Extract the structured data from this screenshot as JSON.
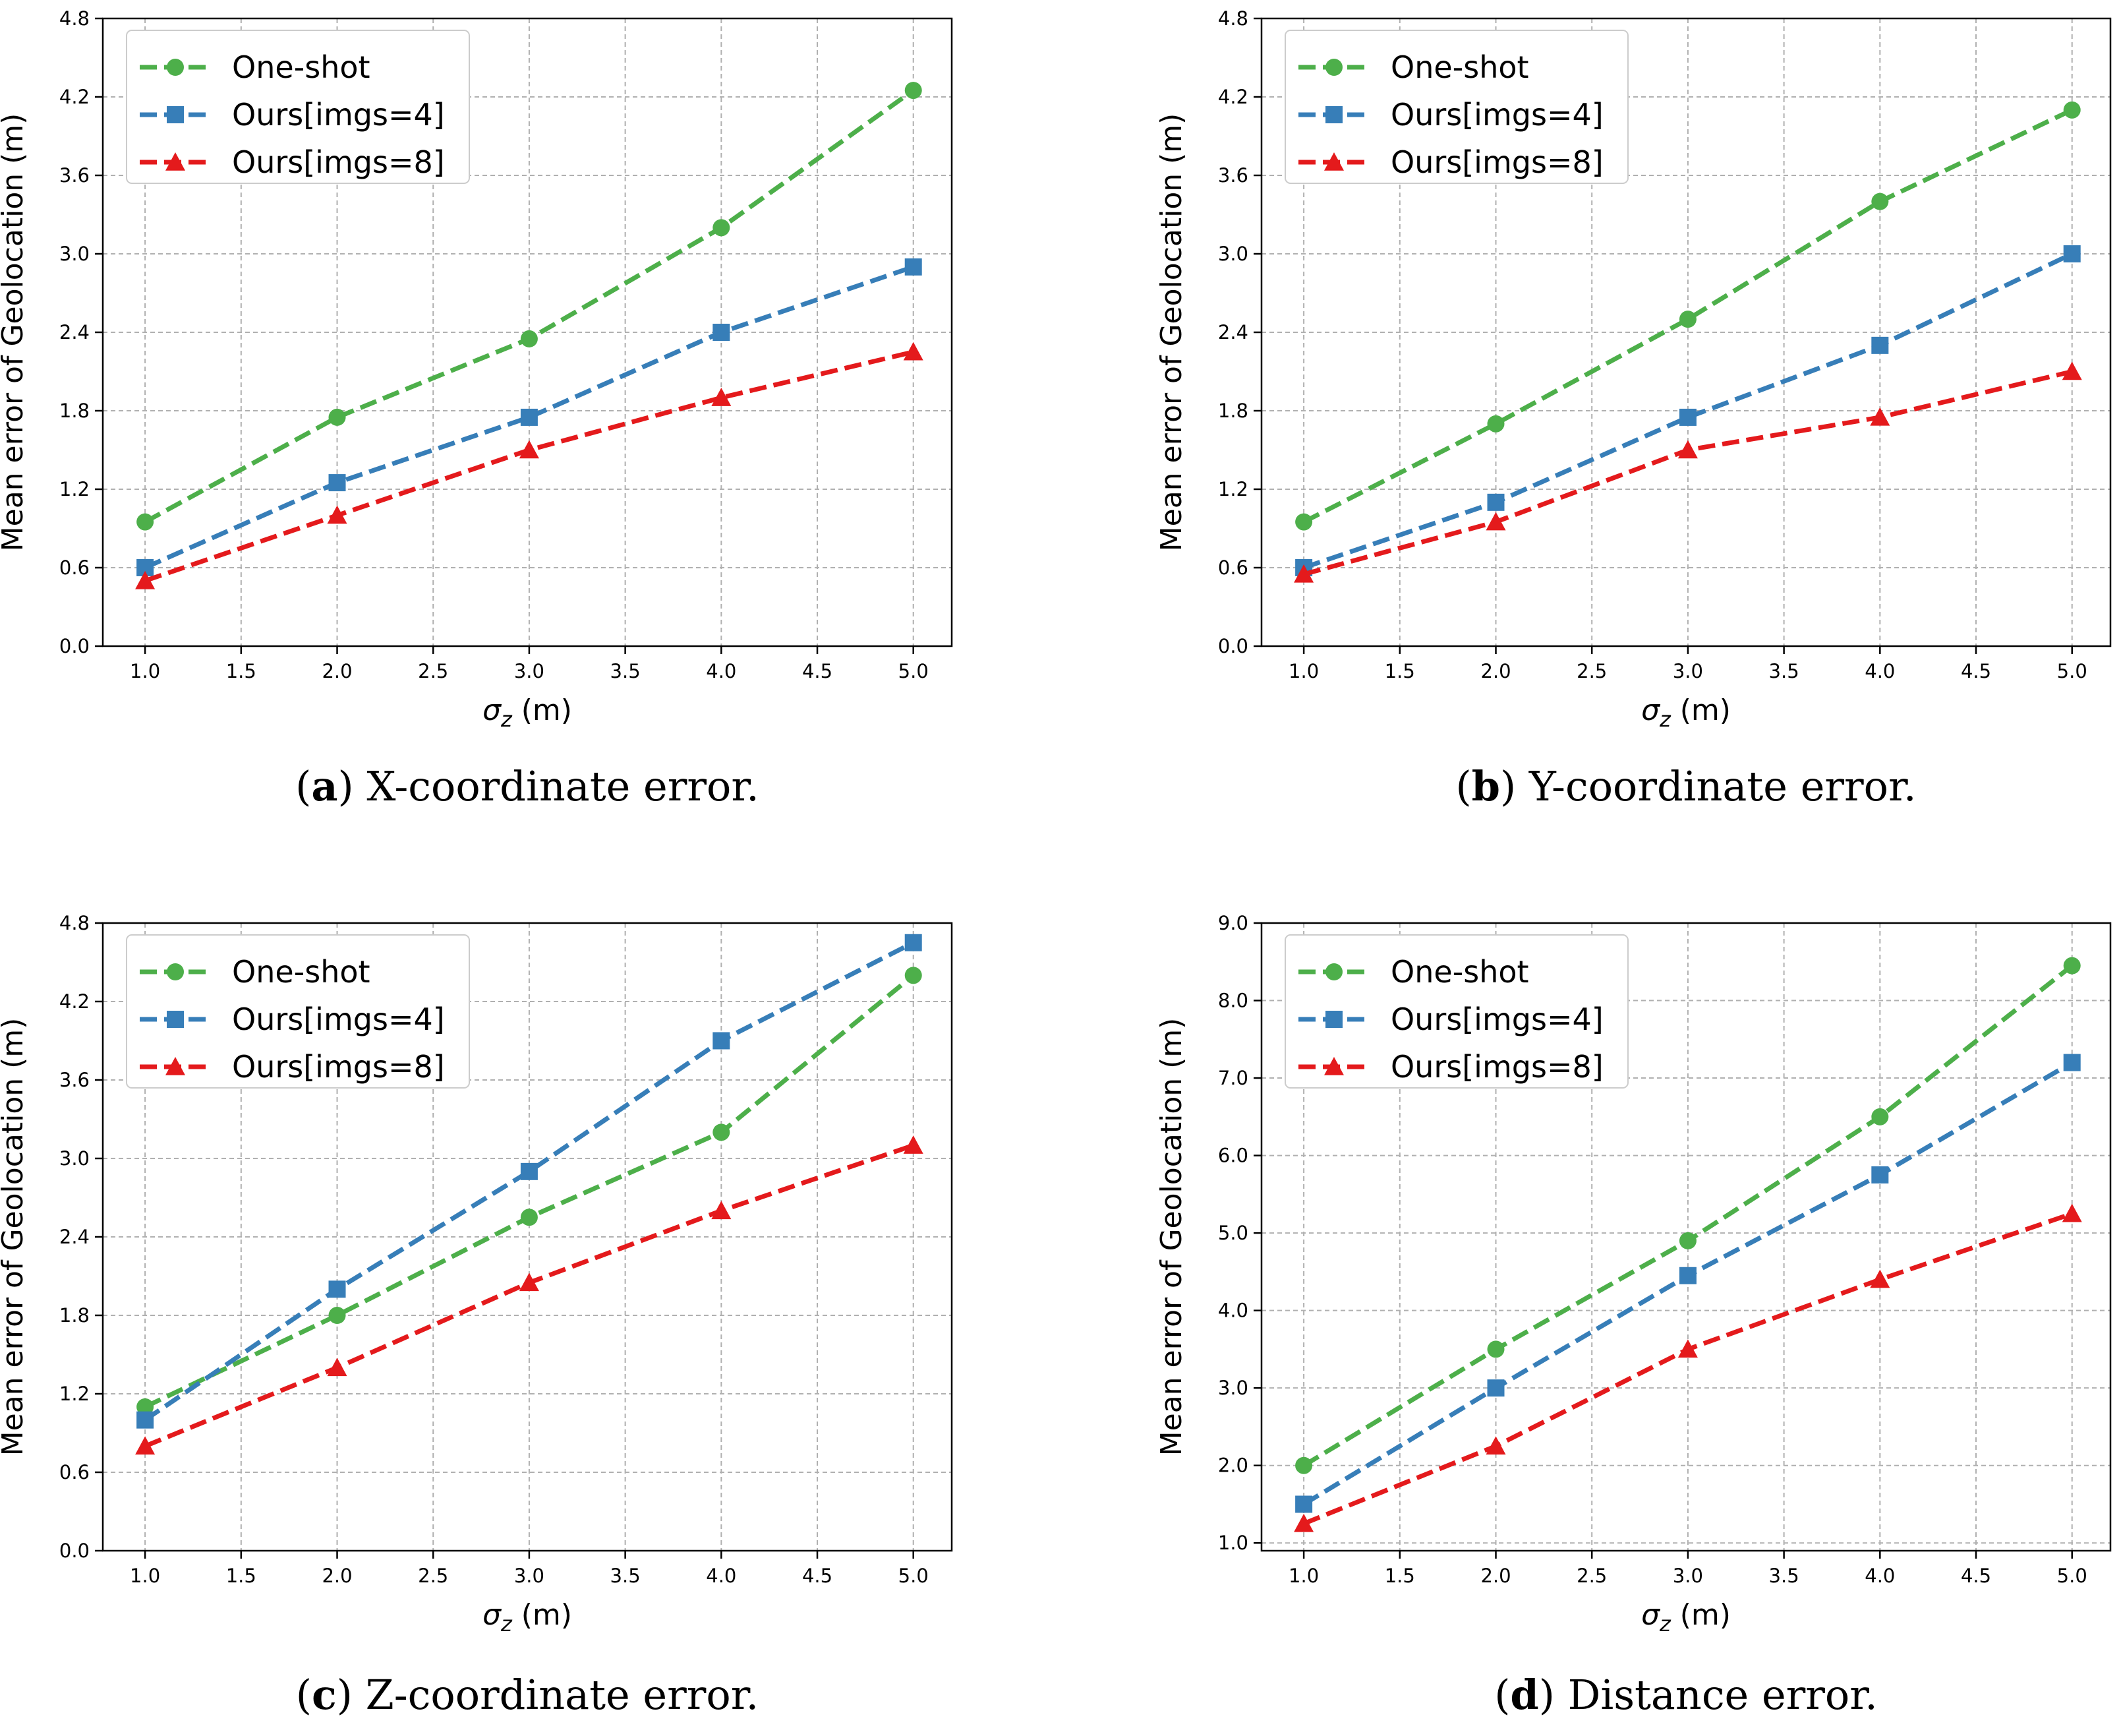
{
  "colors": {
    "one_shot": "#4daf4a",
    "imgs4": "#377eb8",
    "imgs8": "#e41a1c"
  },
  "legend": [
    "One-shot",
    "Ours[imgs=4]",
    "Ours[imgs=8]"
  ],
  "chart_data": [
    {
      "type": "line",
      "caption_letter": "a",
      "caption_text": "X-coordinate error.",
      "xlabel": "σz (m)",
      "ylabel": "Mean error of Geolocation (m)",
      "x": [
        1.0,
        2.0,
        3.0,
        4.0,
        5.0
      ],
      "xlim": [
        0.78,
        5.2
      ],
      "ylim": [
        0.0,
        4.8
      ],
      "xticks": [
        "1.0",
        "1.5",
        "2.0",
        "2.5",
        "3.0",
        "3.5",
        "4.0",
        "4.5",
        "5.0"
      ],
      "yticks": [
        "0.0",
        "0.6",
        "1.2",
        "1.8",
        "2.4",
        "3.0",
        "3.6",
        "4.2",
        "4.8"
      ],
      "legend_position": "upper-left",
      "grid": true,
      "series": [
        {
          "name": "One-shot",
          "values": [
            0.95,
            1.75,
            2.35,
            3.2,
            4.25
          ]
        },
        {
          "name": "Ours[imgs=4]",
          "values": [
            0.6,
            1.25,
            1.75,
            2.4,
            2.9
          ]
        },
        {
          "name": "Ours[imgs=8]",
          "values": [
            0.5,
            1.0,
            1.5,
            1.9,
            2.25
          ]
        }
      ]
    },
    {
      "type": "line",
      "caption_letter": "b",
      "caption_text": "Y-coordinate error.",
      "xlabel": "σz (m)",
      "ylabel": "Mean error of Geolocation (m)",
      "x": [
        1.0,
        2.0,
        3.0,
        4.0,
        5.0
      ],
      "xlim": [
        0.78,
        5.2
      ],
      "ylim": [
        0.0,
        4.8
      ],
      "xticks": [
        "1.0",
        "1.5",
        "2.0",
        "2.5",
        "3.0",
        "3.5",
        "4.0",
        "4.5",
        "5.0"
      ],
      "yticks": [
        "0.0",
        "0.6",
        "1.2",
        "1.8",
        "2.4",
        "3.0",
        "3.6",
        "4.2",
        "4.8"
      ],
      "legend_position": "upper-left",
      "grid": true,
      "series": [
        {
          "name": "One-shot",
          "values": [
            0.95,
            1.7,
            2.5,
            3.4,
            4.1
          ]
        },
        {
          "name": "Ours[imgs=4]",
          "values": [
            0.6,
            1.1,
            1.75,
            2.3,
            3.0
          ]
        },
        {
          "name": "Ours[imgs=8]",
          "values": [
            0.55,
            0.95,
            1.5,
            1.75,
            2.1
          ]
        }
      ]
    },
    {
      "type": "line",
      "caption_letter": "c",
      "caption_text": "Z-coordinate error.",
      "xlabel": "σz (m)",
      "ylabel": "Mean error of Geolocation (m)",
      "x": [
        1.0,
        2.0,
        3.0,
        4.0,
        5.0
      ],
      "xlim": [
        0.78,
        5.2
      ],
      "ylim": [
        0.0,
        4.8
      ],
      "xticks": [
        "1.0",
        "1.5",
        "2.0",
        "2.5",
        "3.0",
        "3.5",
        "4.0",
        "4.5",
        "5.0"
      ],
      "yticks": [
        "0.0",
        "0.6",
        "1.2",
        "1.8",
        "2.4",
        "3.0",
        "3.6",
        "4.2",
        "4.8"
      ],
      "legend_position": "upper-left",
      "grid": true,
      "series": [
        {
          "name": "One-shot",
          "values": [
            1.1,
            1.8,
            2.55,
            3.2,
            4.4
          ]
        },
        {
          "name": "Ours[imgs=4]",
          "values": [
            1.0,
            2.0,
            2.9,
            3.9,
            4.65
          ]
        },
        {
          "name": "Ours[imgs=8]",
          "values": [
            0.8,
            1.4,
            2.05,
            2.6,
            3.1
          ]
        }
      ]
    },
    {
      "type": "line",
      "caption_letter": "d",
      "caption_text": "Distance error.",
      "xlabel": "σz (m)",
      "ylabel": "Mean error of Geolocation (m)",
      "x": [
        1.0,
        2.0,
        3.0,
        4.0,
        5.0
      ],
      "xlim": [
        0.78,
        5.2
      ],
      "ylim": [
        0.9,
        9.0
      ],
      "xticks": [
        "1.0",
        "1.5",
        "2.0",
        "2.5",
        "3.0",
        "3.5",
        "4.0",
        "4.5",
        "5.0"
      ],
      "yticks": [
        "1.0",
        "2.0",
        "3.0",
        "4.0",
        "5.0",
        "6.0",
        "7.0",
        "8.0",
        "9.0"
      ],
      "legend_position": "upper-left",
      "grid": true,
      "series": [
        {
          "name": "One-shot",
          "values": [
            2.0,
            3.5,
            4.9,
            6.5,
            8.45
          ]
        },
        {
          "name": "Ours[imgs=4]",
          "values": [
            1.5,
            3.0,
            4.45,
            5.75,
            7.2
          ]
        },
        {
          "name": "Ours[imgs=8]",
          "values": [
            1.25,
            2.25,
            3.5,
            4.4,
            5.25
          ]
        }
      ]
    }
  ]
}
